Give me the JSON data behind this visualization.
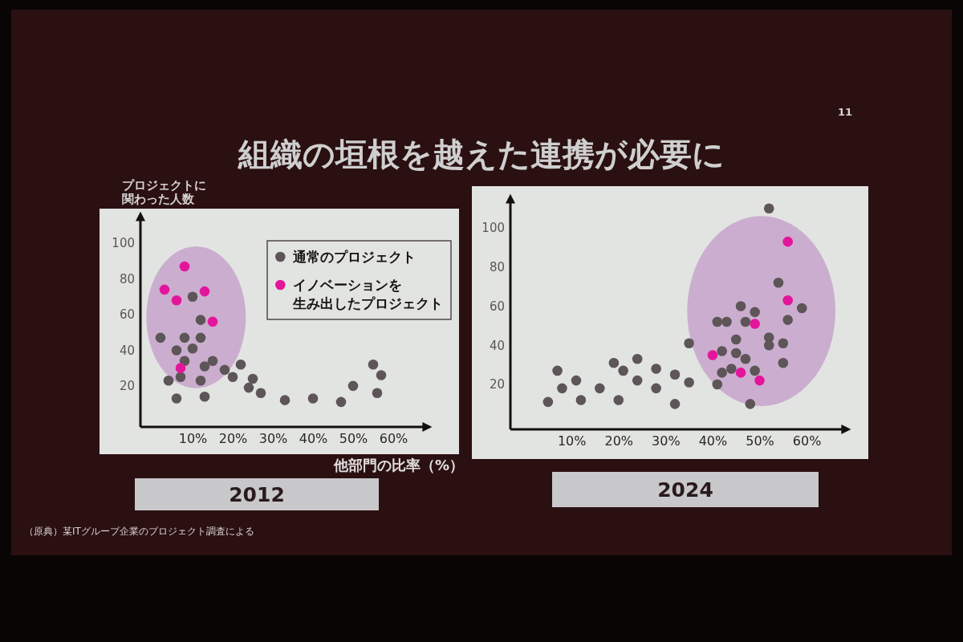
{
  "chart_data": [
    {
      "type": "scatter",
      "title": "組織の垣根を越えた連携が必要に",
      "subtitle": "2012",
      "xlabel": "他部門の比率（%）",
      "ylabel": "プロジェクトに関わった人数",
      "annotations": [
        "（原典）某ITグループ企業のプロジェクト調査による"
      ],
      "xlim": [
        -3,
        68
      ],
      "xticks": [
        {
          "value": 10,
          "label": "10%"
        },
        {
          "value": 20,
          "label": "20%"
        },
        {
          "value": 30,
          "label": "30%"
        },
        {
          "value": 40,
          "label": "40%"
        },
        {
          "value": 50,
          "label": "50%"
        },
        {
          "value": 60,
          "label": "60%"
        }
      ],
      "ylim": [
        -3,
        114
      ],
      "yticks": [
        20,
        40,
        60,
        80,
        100
      ],
      "marker": "circle",
      "legend": "top right",
      "series": [
        {
          "name": "通常のプロジェクト",
          "color": "#5d5557",
          "x": [
            10,
            12,
            2,
            8,
            12,
            6,
            10,
            8,
            15,
            13,
            7,
            12,
            4,
            6,
            13,
            18,
            20,
            22,
            25,
            24,
            27,
            33,
            40,
            47,
            50,
            55,
            57,
            56
          ],
          "values": [
            70,
            57,
            47,
            47,
            47,
            40,
            41,
            34,
            34,
            31,
            25,
            23,
            23,
            13,
            14,
            29,
            25,
            32,
            24,
            19,
            16,
            12,
            13,
            11,
            20,
            32,
            26,
            16
          ]
        },
        {
          "name": "イノベーションを生み出したプロジェクト",
          "color": "#e3169b",
          "x": [
            8,
            3,
            6,
            13,
            15,
            7
          ],
          "values": [
            87,
            74,
            68,
            73,
            56,
            30
          ]
        }
      ]
    },
    {
      "type": "scatter",
      "subtitle": "2024",
      "annotations": [
        "11"
      ],
      "xlim": [
        -3,
        68
      ],
      "xticks": [
        {
          "value": 10,
          "label": "10%"
        },
        {
          "value": 20,
          "label": "20%"
        },
        {
          "value": 30,
          "label": "30%"
        },
        {
          "value": 40,
          "label": "40%"
        },
        {
          "value": 50,
          "label": "50%"
        },
        {
          "value": 60,
          "label": "60%"
        }
      ],
      "ylim": [
        -3,
        114
      ],
      "yticks": [
        20,
        40,
        60,
        80,
        100
      ],
      "marker": "circle",
      "series": [
        {
          "color": "#5d5557",
          "x": [
            5,
            7,
            8,
            11,
            12,
            16,
            20,
            19,
            21,
            24,
            24,
            28,
            28,
            32,
            32,
            35,
            35,
            41,
            42,
            48,
            52,
            41,
            43,
            46,
            49,
            47,
            45,
            42,
            45,
            47,
            44,
            49,
            52,
            52,
            54,
            56,
            55,
            55,
            59
          ],
          "values": [
            11,
            27,
            18,
            22,
            12,
            18,
            12,
            31,
            27,
            33,
            22,
            28,
            18,
            10,
            25,
            21,
            41,
            20,
            26,
            10,
            110,
            52,
            52,
            60,
            57,
            52,
            43,
            37,
            36,
            33,
            28,
            27,
            44,
            40,
            72,
            53,
            41,
            31,
            59
          ]
        },
        {
          "color": "#e3169b",
          "x": [
            56,
            56,
            49,
            40,
            46,
            50
          ],
          "values": [
            93,
            63,
            51,
            35,
            26,
            22
          ]
        }
      ]
    }
  ]
}
